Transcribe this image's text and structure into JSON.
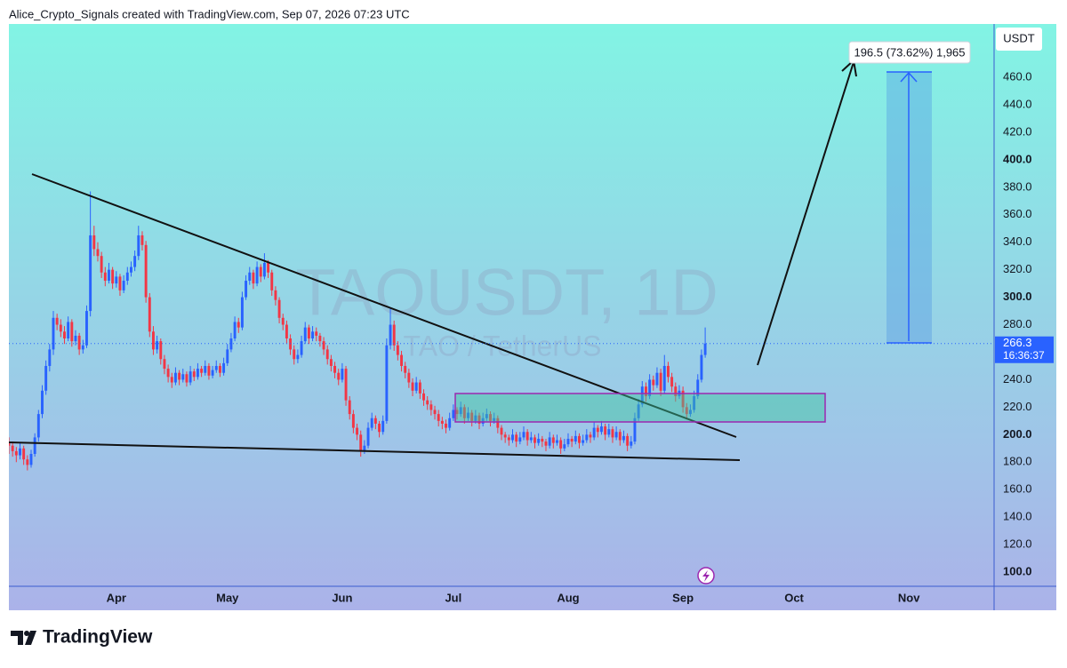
{
  "header": "Alice_Crypto_Signals created with TradingView.com, Sep 07, 2026 07:23 UTC",
  "footer": {
    "brand": "TradingView"
  },
  "chart_data": {
    "type": "candlestick",
    "title": "TAOUSDT, 1D",
    "subtitle": "TAO / TetherUS",
    "y_axis_label": "USDT",
    "countdown": "16:36:37",
    "measure_label": "196.5 (73.62%) 1,965",
    "up_color": "#2962ff",
    "down_color": "#f23645",
    "grid": false,
    "xlim": [
      0,
      266
    ],
    "xticks": [
      {
        "value": 29,
        "label": "Apr"
      },
      {
        "value": 59,
        "label": "May"
      },
      {
        "value": 90,
        "label": "Jun"
      },
      {
        "value": 120,
        "label": "Jul"
      },
      {
        "value": 151,
        "label": "Aug"
      },
      {
        "value": 182,
        "label": "Sep"
      },
      {
        "value": 212,
        "label": "Oct"
      },
      {
        "value": 243,
        "label": "Nov"
      }
    ],
    "ylim": [
      89.7,
      498.8
    ],
    "yticks": [
      {
        "value": 100,
        "label": "100.0"
      },
      {
        "value": 120,
        "label": "120.0"
      },
      {
        "value": 140,
        "label": "140.0"
      },
      {
        "value": 160,
        "label": "160.0"
      },
      {
        "value": 180,
        "label": "180.0"
      },
      {
        "value": 200,
        "label": "200.0"
      },
      {
        "value": 220,
        "label": "220.0"
      },
      {
        "value": 240,
        "label": "240.0"
      },
      {
        "value": 260,
        "label": "260.0"
      },
      {
        "value": 280,
        "label": "280.0"
      },
      {
        "value": 300,
        "label": "300.0"
      },
      {
        "value": 320,
        "label": "320.0"
      },
      {
        "value": 340,
        "label": "340.0"
      },
      {
        "value": 360,
        "label": "360.0"
      },
      {
        "value": 380,
        "label": "380.0"
      },
      {
        "value": 400,
        "label": "400.0"
      },
      {
        "value": 420,
        "label": "420.0"
      },
      {
        "value": 440,
        "label": "440.0"
      },
      {
        "value": 460,
        "label": "460.0"
      }
    ],
    "candles": [
      [
        195,
        198,
        186,
        192
      ],
      [
        192,
        195,
        184,
        188
      ],
      [
        188,
        191,
        180,
        185
      ],
      [
        185,
        194,
        182,
        190
      ],
      [
        190,
        192,
        178,
        182
      ],
      [
        182,
        185,
        174,
        178
      ],
      [
        178,
        189,
        176,
        186
      ],
      [
        186,
        201,
        184,
        198
      ],
      [
        198,
        218,
        195,
        215
      ],
      [
        215,
        236,
        212,
        232
      ],
      [
        232,
        254,
        229,
        250
      ],
      [
        250,
        266,
        246,
        262
      ],
      [
        262,
        290,
        258,
        285
      ],
      [
        285,
        288,
        276,
        280
      ],
      [
        280,
        284,
        271,
        275
      ],
      [
        275,
        279,
        266,
        270
      ],
      [
        270,
        286,
        268,
        282
      ],
      [
        282,
        284,
        264,
        268
      ],
      [
        268,
        276,
        265,
        272
      ],
      [
        272,
        274,
        258,
        262
      ],
      [
        262,
        269,
        259,
        265
      ],
      [
        265,
        294,
        263,
        290
      ],
      [
        290,
        377,
        286,
        345
      ],
      [
        345,
        352,
        330,
        335
      ],
      [
        335,
        340,
        326,
        330
      ],
      [
        330,
        333,
        314,
        318
      ],
      [
        318,
        322,
        308,
        312
      ],
      [
        312,
        325,
        310,
        320
      ],
      [
        320,
        322,
        306,
        310
      ],
      [
        310,
        319,
        307,
        315
      ],
      [
        315,
        317,
        301,
        305
      ],
      [
        305,
        316,
        303,
        312
      ],
      [
        312,
        322,
        309,
        318
      ],
      [
        318,
        326,
        315,
        322
      ],
      [
        322,
        334,
        319,
        330
      ],
      [
        330,
        352,
        327,
        345
      ],
      [
        345,
        348,
        334,
        338
      ],
      [
        338,
        341,
        296,
        300
      ],
      [
        300,
        303,
        271,
        275
      ],
      [
        275,
        279,
        258,
        262
      ],
      [
        262,
        272,
        259,
        268
      ],
      [
        268,
        270,
        251,
        255
      ],
      [
        255,
        258,
        244,
        248
      ],
      [
        248,
        251,
        238,
        242
      ],
      [
        242,
        245,
        234,
        238
      ],
      [
        238,
        249,
        236,
        245
      ],
      [
        245,
        247,
        236,
        240
      ],
      [
        240,
        248,
        238,
        244
      ],
      [
        244,
        246,
        235,
        238
      ],
      [
        238,
        250,
        236,
        246
      ],
      [
        246,
        248,
        239,
        242
      ],
      [
        242,
        252,
        240,
        248
      ],
      [
        248,
        250,
        242,
        245
      ],
      [
        245,
        254,
        243,
        250
      ],
      [
        250,
        252,
        240,
        243
      ],
      [
        243,
        250,
        241,
        247
      ],
      [
        247,
        254,
        245,
        250
      ],
      [
        250,
        252,
        242,
        245
      ],
      [
        245,
        256,
        243,
        252
      ],
      [
        252,
        266,
        250,
        262
      ],
      [
        262,
        274,
        260,
        270
      ],
      [
        270,
        286,
        268,
        282
      ],
      [
        282,
        285,
        274,
        278
      ],
      [
        278,
        304,
        276,
        300
      ],
      [
        300,
        316,
        298,
        312
      ],
      [
        312,
        322,
        309,
        318
      ],
      [
        318,
        320,
        306,
        310
      ],
      [
        310,
        326,
        308,
        322
      ],
      [
        322,
        324,
        311,
        315
      ],
      [
        315,
        332,
        313,
        325
      ],
      [
        325,
        327,
        314,
        318
      ],
      [
        318,
        320,
        301,
        305
      ],
      [
        305,
        308,
        294,
        298
      ],
      [
        298,
        300,
        281,
        285
      ],
      [
        285,
        288,
        276,
        280
      ],
      [
        280,
        283,
        266,
        270
      ],
      [
        270,
        273,
        258,
        262
      ],
      [
        262,
        265,
        251,
        255
      ],
      [
        255,
        262,
        252,
        258
      ],
      [
        258,
        272,
        256,
        268
      ],
      [
        268,
        282,
        266,
        278
      ],
      [
        278,
        280,
        266,
        270
      ],
      [
        270,
        279,
        268,
        275
      ],
      [
        275,
        278,
        268,
        272
      ],
      [
        272,
        274,
        264,
        268
      ],
      [
        268,
        271,
        258,
        262
      ],
      [
        262,
        265,
        251,
        255
      ],
      [
        255,
        258,
        246,
        250
      ],
      [
        250,
        253,
        241,
        245
      ],
      [
        245,
        248,
        236,
        240
      ],
      [
        240,
        252,
        238,
        248
      ],
      [
        248,
        250,
        221,
        225
      ],
      [
        225,
        228,
        211,
        215
      ],
      [
        215,
        218,
        201,
        205
      ],
      [
        205,
        208,
        196,
        200
      ],
      [
        200,
        203,
        184,
        188
      ],
      [
        188,
        196,
        186,
        192
      ],
      [
        192,
        209,
        190,
        205
      ],
      [
        205,
        216,
        203,
        212
      ],
      [
        212,
        214,
        204,
        208
      ],
      [
        208,
        210,
        198,
        202
      ],
      [
        202,
        214,
        200,
        210
      ],
      [
        210,
        270,
        208,
        265
      ],
      [
        265,
        292,
        262,
        280
      ],
      [
        280,
        283,
        261,
        265
      ],
      [
        265,
        268,
        254,
        258
      ],
      [
        258,
        261,
        246,
        250
      ],
      [
        250,
        253,
        241,
        245
      ],
      [
        245,
        248,
        234,
        238
      ],
      [
        238,
        241,
        228,
        232
      ],
      [
        232,
        242,
        230,
        238
      ],
      [
        238,
        240,
        226,
        230
      ],
      [
        230,
        233,
        221,
        225
      ],
      [
        225,
        228,
        218,
        222
      ],
      [
        222,
        225,
        214,
        218
      ],
      [
        218,
        221,
        211,
        215
      ],
      [
        215,
        218,
        206,
        210
      ],
      [
        210,
        213,
        204,
        208
      ],
      [
        208,
        211,
        201,
        205
      ],
      [
        205,
        216,
        203,
        212
      ],
      [
        212,
        222,
        210,
        218
      ],
      [
        218,
        220,
        211,
        215
      ],
      [
        215,
        224,
        213,
        220
      ],
      [
        220,
        222,
        208,
        212
      ],
      [
        212,
        220,
        210,
        216
      ],
      [
        216,
        218,
        206,
        210
      ],
      [
        210,
        218,
        208,
        214
      ],
      [
        214,
        216,
        204,
        208
      ],
      [
        208,
        216,
        206,
        212
      ],
      [
        212,
        219,
        210,
        215
      ],
      [
        215,
        217,
        206,
        210
      ],
      [
        210,
        216,
        208,
        212
      ],
      [
        212,
        214,
        201,
        205
      ],
      [
        205,
        207,
        196,
        200
      ],
      [
        200,
        202,
        194,
        198
      ],
      [
        198,
        200,
        192,
        196
      ],
      [
        196,
        204,
        194,
        200
      ],
      [
        200,
        202,
        191,
        195
      ],
      [
        195,
        202,
        193,
        198
      ],
      [
        198,
        206,
        196,
        202
      ],
      [
        202,
        204,
        192,
        196
      ],
      [
        196,
        202,
        194,
        198
      ],
      [
        198,
        200,
        190,
        194
      ],
      [
        194,
        201,
        192,
        197
      ],
      [
        197,
        199,
        191,
        195
      ],
      [
        195,
        197,
        188,
        192
      ],
      [
        192,
        202,
        190,
        198
      ],
      [
        198,
        200,
        190,
        194
      ],
      [
        194,
        200,
        192,
        196
      ],
      [
        196,
        198,
        186,
        190
      ],
      [
        190,
        197,
        188,
        193
      ],
      [
        193,
        201,
        191,
        197
      ],
      [
        197,
        199,
        191,
        195
      ],
      [
        195,
        203,
        193,
        199
      ],
      [
        199,
        201,
        190,
        194
      ],
      [
        194,
        200,
        192,
        196
      ],
      [
        196,
        204,
        194,
        200
      ],
      [
        200,
        202,
        194,
        198
      ],
      [
        198,
        209,
        196,
        205
      ],
      [
        205,
        207,
        198,
        202
      ],
      [
        202,
        210,
        200,
        206
      ],
      [
        206,
        208,
        196,
        200
      ],
      [
        200,
        208,
        198,
        204
      ],
      [
        204,
        206,
        194,
        198
      ],
      [
        198,
        206,
        196,
        202
      ],
      [
        202,
        204,
        192,
        196
      ],
      [
        196,
        203,
        194,
        199
      ],
      [
        199,
        201,
        188,
        192
      ],
      [
        192,
        199,
        190,
        195
      ],
      [
        195,
        216,
        193,
        212
      ],
      [
        212,
        226,
        210,
        222
      ],
      [
        222,
        239,
        220,
        235
      ],
      [
        235,
        238,
        224,
        228
      ],
      [
        228,
        244,
        226,
        240
      ],
      [
        240,
        243,
        232,
        236
      ],
      [
        236,
        249,
        234,
        245
      ],
      [
        245,
        248,
        228,
        232
      ],
      [
        232,
        258,
        230,
        250
      ],
      [
        250,
        253,
        238,
        242
      ],
      [
        242,
        245,
        231,
        235
      ],
      [
        235,
        238,
        224,
        228
      ],
      [
        228,
        236,
        226,
        232
      ],
      [
        232,
        235,
        216,
        220
      ],
      [
        220,
        223,
        211,
        215
      ],
      [
        215,
        222,
        213,
        218
      ],
      [
        218,
        232,
        216,
        228
      ],
      [
        228,
        244,
        226,
        240
      ],
      [
        240,
        262,
        238,
        258
      ],
      [
        258,
        278,
        256,
        266.3
      ]
    ]
  }
}
